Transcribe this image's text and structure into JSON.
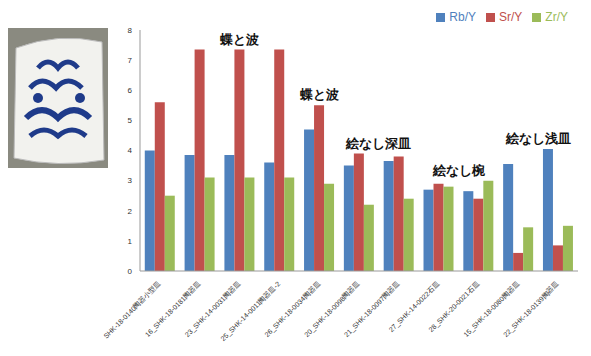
{
  "chart_data": {
    "type": "bar",
    "categories": [
      "SHK-18-0140陶器小型皿",
      "16_SHK-18-0181陶器皿",
      "23_SHK-14-0031陶器皿",
      "25_SHK-14-0011陶器皿-2",
      "26_SHK-18-0034陶器皿",
      "20_SHK-18-0098陶器皿",
      "21_SHK-18-0097陶器皿",
      "27_SHK-14-0022石皿",
      "28_SHK-20-0021石皿",
      "15_SHK-18-0080陶器皿",
      "22_SHK-18-0139陶器皿"
    ],
    "series": [
      {
        "name": "Rb/Y",
        "color": "#4f81bd",
        "values": [
          4.0,
          3.85,
          3.85,
          3.6,
          4.7,
          3.5,
          3.65,
          2.7,
          2.65,
          3.55,
          4.05
        ]
      },
      {
        "name": "Sr/Y",
        "color": "#c0504d",
        "values": [
          5.6,
          7.35,
          7.35,
          7.35,
          5.5,
          3.9,
          3.8,
          2.9,
          2.4,
          0.6,
          0.85
        ]
      },
      {
        "name": "Zr/Y",
        "color": "#9bbb59",
        "values": [
          2.5,
          3.1,
          3.1,
          3.1,
          2.9,
          2.2,
          2.4,
          2.8,
          3.0,
          1.45,
          1.5
        ]
      }
    ],
    "annotations": [
      {
        "text": "蝶と波",
        "from": "16_SHK-18-0181陶器皿",
        "to": "25_SHK-14-0011陶器皿-2"
      },
      {
        "text": "蝶と波",
        "from": "26_SHK-18-0034陶器皿",
        "to": "26_SHK-18-0034陶器皿"
      },
      {
        "text": "絵なし深皿",
        "from": "20_SHK-18-0098陶器皿",
        "to": "21_SHK-18-0097陶器皿"
      },
      {
        "text": "絵なし椀",
        "from": "27_SHK-14-0022石皿",
        "to": "28_SHK-20-0021石皿"
      },
      {
        "text": "絵なし浅皿",
        "from": "15_SHK-18-0080陶器皿",
        "to": "22_SHK-18-0139陶器皿"
      }
    ],
    "ylim": [
      0,
      8
    ],
    "yticks": [
      0,
      1,
      2,
      3,
      4,
      5,
      6,
      7,
      8
    ],
    "grid": false,
    "legend": "top-right"
  }
}
